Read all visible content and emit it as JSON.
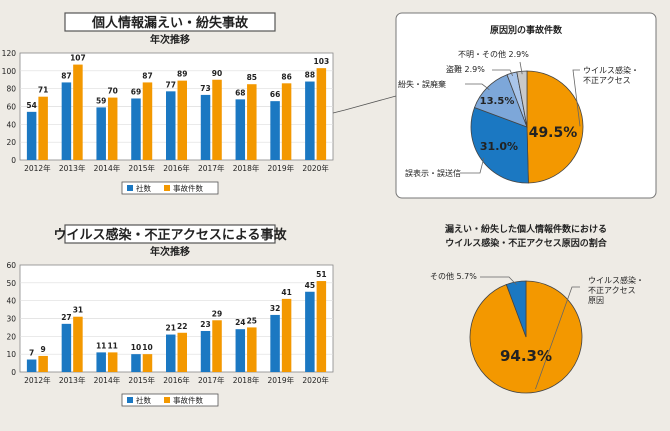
{
  "colors": {
    "company": "#1b78c2",
    "incidents": "#f39800",
    "light_blue": "#7da7d9",
    "pale_blue": "#a9c5ea",
    "gray": "#c9c9c9"
  },
  "chart_data": [
    {
      "type": "bar",
      "title": "個人情報漏えい・紛失事故",
      "subtitle": "年次推移",
      "categories": [
        "2012年",
        "2013年",
        "2014年",
        "2015年",
        "2016年",
        "2017年",
        "2018年",
        "2019年",
        "2020年"
      ],
      "series": [
        {
          "name": "社数",
          "values": [
            54,
            87,
            59,
            69,
            77,
            73,
            68,
            66,
            88
          ]
        },
        {
          "name": "事故件数",
          "values": [
            71,
            107,
            70,
            87,
            89,
            90,
            85,
            86,
            103
          ]
        }
      ],
      "ylim": [
        0,
        120
      ],
      "yticks": [
        0,
        20,
        40,
        60,
        80,
        100,
        120
      ],
      "grid": true,
      "legend": "bottom"
    },
    {
      "type": "bar",
      "title": "ウイルス感染・不正アクセスによる事故",
      "subtitle": "年次推移",
      "categories": [
        "2012年",
        "2013年",
        "2014年",
        "2015年",
        "2016年",
        "2017年",
        "2018年",
        "2019年",
        "2020年"
      ],
      "series": [
        {
          "name": "社数",
          "values": [
            7,
            27,
            11,
            10,
            21,
            23,
            24,
            32,
            45
          ]
        },
        {
          "name": "事故件数",
          "values": [
            9,
            31,
            11,
            10,
            22,
            29,
            25,
            41,
            51
          ]
        }
      ],
      "ylim": [
        0,
        60
      ],
      "yticks": [
        0,
        10,
        20,
        30,
        40,
        50,
        60
      ],
      "grid": true,
      "legend": "bottom"
    },
    {
      "type": "pie",
      "title": "原因別の事故件数",
      "slices": [
        {
          "label": "ウイルス感染・\n不正アクセス",
          "value": 49.5,
          "value_label": "49.5%",
          "color": "#f39800"
        },
        {
          "label": "誤表示・誤送信",
          "value": 31.0,
          "value_label": "31.0%",
          "color": "#1b78c2"
        },
        {
          "label": "紛失・誤廃棄",
          "value": 13.5,
          "value_label": "13.5%",
          "color": "#7da7d9"
        },
        {
          "label": "盗難",
          "value": 2.9,
          "value_label": "2.9%",
          "color": "#a9c5ea"
        },
        {
          "label": "不明・その他",
          "value": 2.9,
          "value_label": "2.9%",
          "color": "#c9c9c9"
        }
      ]
    },
    {
      "type": "pie",
      "title": "漏えい・紛失した個人情報件数における\nウイルス感染・不正アクセス原因の割合",
      "slices": [
        {
          "label": "ウイルス感染・\n不正アクセス\n原因",
          "value": 94.3,
          "value_label": "94.3%",
          "color": "#f39800"
        },
        {
          "label": "その他",
          "value": 5.7,
          "value_label": "5.7%",
          "color": "#1b78c2"
        }
      ]
    }
  ]
}
